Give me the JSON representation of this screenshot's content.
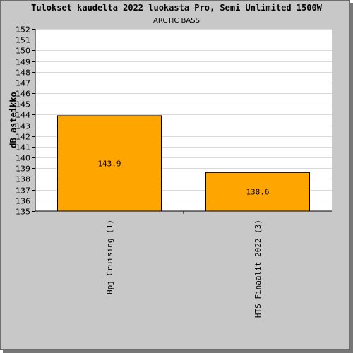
{
  "chart_data": {
    "type": "bar",
    "title": "Tulokset kaudelta 2022 luokasta Pro, Semi Unlimited 1500W",
    "subtitle": "ARCTIC BASS",
    "ylabel": "dB asteikko",
    "xlabel": "",
    "ylim": [
      135,
      152
    ],
    "ytick_step": 1,
    "grid": true,
    "categories": [
      "Hpj Cruising (1)",
      "HTS Finaalit 2022 (3)"
    ],
    "values": [
      143.9,
      138.6
    ],
    "value_labels": [
      "143.9",
      "138.6"
    ],
    "bar_color": "#ffa500",
    "background": "#c8c8c8",
    "plot_background": "#ffffff"
  }
}
